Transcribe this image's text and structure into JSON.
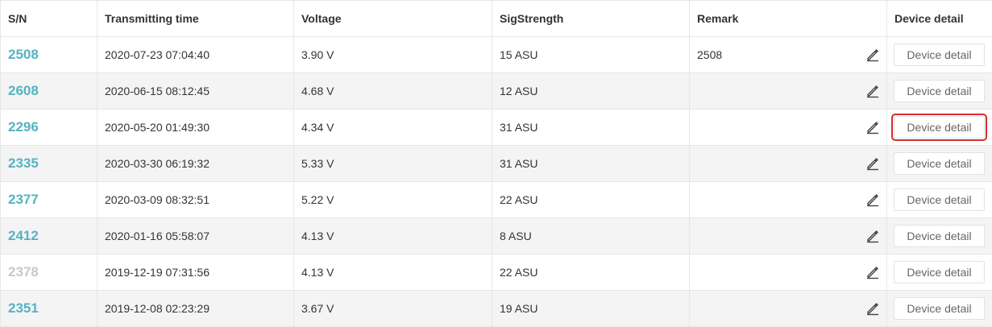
{
  "table": {
    "headers": {
      "sn": "S/N",
      "time": "Transmitting time",
      "voltage": "Voltage",
      "signal": "SigStrength",
      "remark": "Remark",
      "detail": "Device detail"
    },
    "button_label": "Device detail",
    "icons": {
      "edit": "pencil-edit-icon"
    },
    "colors": {
      "sn_link": "#55b3c3",
      "sn_inactive": "#c8c8c8",
      "highlight": "#d32f2f"
    },
    "rows": [
      {
        "sn": "2508",
        "time": "2020-07-23 07:04:40",
        "voltage": "3.90 V",
        "signal": "15 ASU",
        "remark": "2508"
      },
      {
        "sn": "2608",
        "time": "2020-06-15 08:12:45",
        "voltage": "4.68 V",
        "signal": "12 ASU",
        "remark": ""
      },
      {
        "sn": "2296",
        "time": "2020-05-20 01:49:30",
        "voltage": "4.34 V",
        "signal": "31 ASU",
        "remark": ""
      },
      {
        "sn": "2335",
        "time": "2020-03-30 06:19:32",
        "voltage": "5.33 V",
        "signal": "31 ASU",
        "remark": ""
      },
      {
        "sn": "2377",
        "time": "2020-03-09 08:32:51",
        "voltage": "5.22 V",
        "signal": "22 ASU",
        "remark": ""
      },
      {
        "sn": "2412",
        "time": "2020-01-16 05:58:07",
        "voltage": "4.13 V",
        "signal": "8 ASU",
        "remark": ""
      },
      {
        "sn": "2378",
        "time": "2019-12-19 07:31:56",
        "voltage": "4.13 V",
        "signal": "22 ASU",
        "remark": ""
      },
      {
        "sn": "2351",
        "time": "2019-12-08 02:23:29",
        "voltage": "3.67 V",
        "signal": "19 ASU",
        "remark": ""
      }
    ]
  }
}
